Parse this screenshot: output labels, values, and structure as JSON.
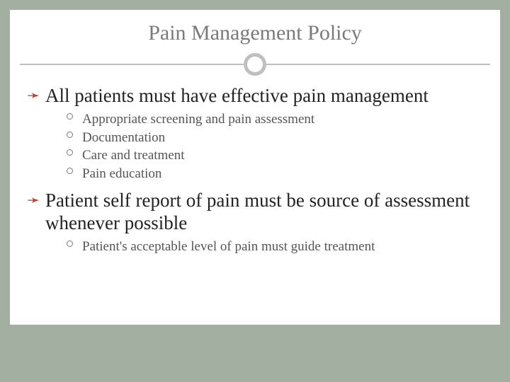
{
  "colors": {
    "slide_background": "#a2afa1",
    "panel_background": "#ffffff",
    "title_color": "#7a7a7a",
    "divider_color": "#bfbfbf",
    "main_bullet_color": "#b9442a",
    "main_text_color": "#222222",
    "sub_text_color": "#555555",
    "sub_bullet_border": "#777777"
  },
  "typography": {
    "title_fontsize": 30,
    "main_fontsize": 27,
    "sub_fontsize": 19,
    "font_family": "Georgia, 'Times New Roman', serif"
  },
  "title": "Pain Management Policy",
  "points": [
    {
      "text": "All patients must have effective pain management",
      "subs": [
        "Appropriate screening and pain assessment",
        "Documentation",
        "Care and treatment",
        "Pain education"
      ]
    },
    {
      "text": "Patient self report of pain must be source of assessment whenever possible",
      "subs": [
        "Patient's acceptable level of pain must guide treatment"
      ]
    }
  ]
}
